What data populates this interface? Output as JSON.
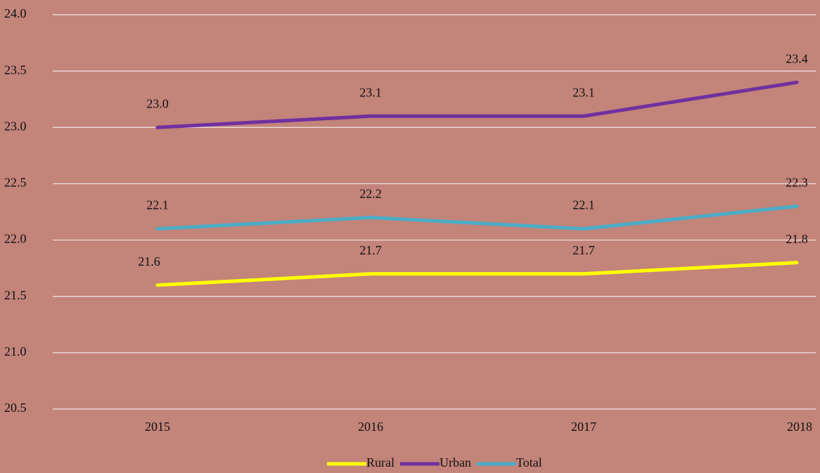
{
  "chart_data": {
    "type": "line",
    "categories": [
      "2015",
      "2016",
      "2017",
      "2018"
    ],
    "series": [
      {
        "name": "Rural",
        "color": "#ffff00",
        "values": [
          21.6,
          21.7,
          21.7,
          21.8
        ],
        "value_labels": [
          "21.6",
          "21.7",
          "21.7",
          "21.8"
        ]
      },
      {
        "name": "Urban",
        "color": "#7030a0",
        "values": [
          23.0,
          23.1,
          23.1,
          23.4
        ],
        "value_labels": [
          "23.0",
          "23.1",
          "23.1",
          "23.4"
        ]
      },
      {
        "name": "Total",
        "color": "#4bacc6",
        "values": [
          22.1,
          22.2,
          22.1,
          22.3
        ],
        "value_labels": [
          "22.1",
          "22.2",
          "22.1",
          "22.3"
        ]
      }
    ],
    "ylim": [
      20.5,
      24.0
    ],
    "yticks": [
      {
        "value": 20.5,
        "label": "20.5"
      },
      {
        "value": 21,
        "label": "21.0"
      },
      {
        "value": 21.5,
        "label": "21.5"
      },
      {
        "value": 22,
        "label": "22.0"
      },
      {
        "value": 22.5,
        "label": "22.5"
      },
      {
        "value": 23,
        "label": "23.0"
      },
      {
        "value": 23.5,
        "label": "23.5"
      },
      {
        "value": 24,
        "label": "24.0"
      }
    ],
    "grid": true,
    "legend": "bottom"
  }
}
